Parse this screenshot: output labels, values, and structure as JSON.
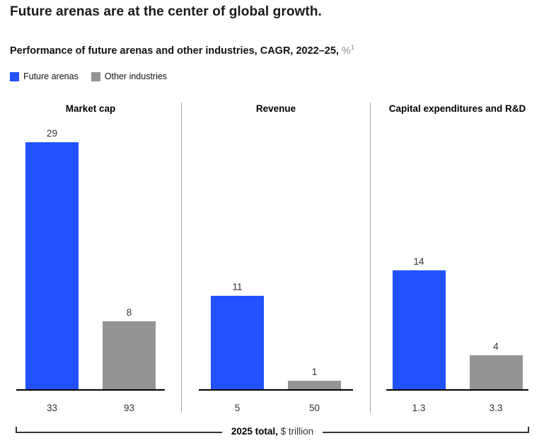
{
  "header": {
    "title": "Future arenas are at the center of global growth.",
    "subtitle": "Performance of future arenas and other industries, CAGR, 2022–25,",
    "subtitle_unit": "%",
    "subtitle_footnote": "1"
  },
  "chart_data": {
    "type": "bar",
    "title": "Performance of future arenas and other industries, CAGR, 2022–25, %",
    "value_unit": "%",
    "ylim": [
      0,
      29
    ],
    "grid": "off",
    "legend_position": "top-left",
    "series": [
      {
        "name": "Future arenas",
        "color": "#2251ff"
      },
      {
        "name": "Other industries",
        "color": "#949494"
      }
    ],
    "panels": [
      {
        "title": "Market cap",
        "bars": [
          {
            "series": "Future arenas",
            "value": 29,
            "total_2025": "33"
          },
          {
            "series": "Other industries",
            "value": 8,
            "total_2025": "93"
          }
        ]
      },
      {
        "title": "Revenue",
        "bars": [
          {
            "series": "Future arenas",
            "value": 11,
            "total_2025": "5"
          },
          {
            "series": "Other industries",
            "value": 1,
            "total_2025": "50"
          }
        ]
      },
      {
        "title": "Capital expenditures and R&D",
        "bars": [
          {
            "series": "Future arenas",
            "value": 14,
            "total_2025": "1.3"
          },
          {
            "series": "Other industries",
            "value": 4,
            "total_2025": "3.3"
          }
        ]
      }
    ],
    "footer_axis_label": "2025 total, $ trillion"
  },
  "footer": {
    "label_bold": "2025 total,",
    "label_regular": "$ trillion"
  }
}
